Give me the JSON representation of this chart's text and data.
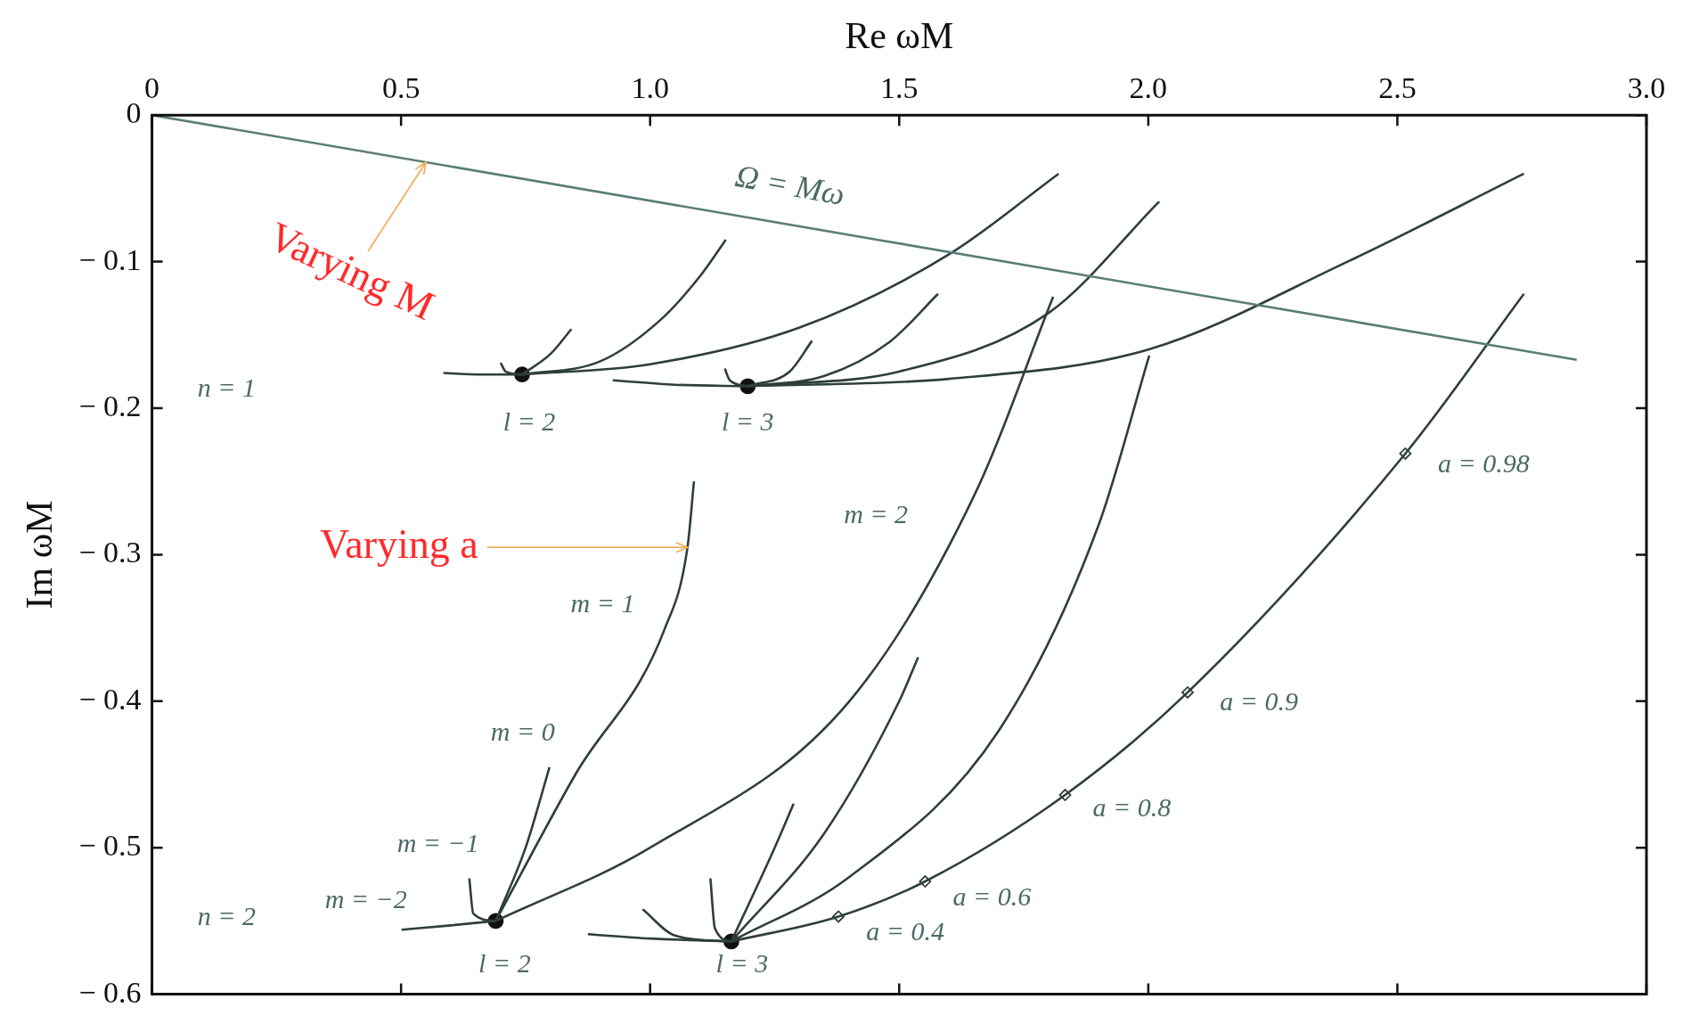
{
  "chart_data": {
    "type": "line",
    "xlabel": "Re ωM",
    "ylabel": "Im ωM",
    "xlim": [
      0,
      3.0
    ],
    "ylim": [
      -0.6,
      0
    ],
    "xticks": [
      0,
      0.5,
      {
        "value": 1.0,
        "label": "1.0"
      },
      1.5,
      {
        "value": 2.0,
        "label": "2.0"
      },
      2.5,
      {
        "value": 3.0,
        "label": "3.0"
      }
    ],
    "yticks": [
      {
        "value": 0,
        "label": "0"
      },
      {
        "value": -0.1,
        "label": "− 0.1"
      },
      {
        "value": -0.2,
        "label": "− 0.2"
      },
      {
        "value": -0.3,
        "label": "− 0.3"
      },
      {
        "value": -0.4,
        "label": "− 0.4"
      },
      {
        "value": -0.5,
        "label": "− 0.5"
      },
      {
        "value": -0.6,
        "label": "− 0.6"
      }
    ],
    "grid": false,
    "legend": false,
    "marker": "none",
    "line_style": "solid",
    "series": [
      {
        "type": "line",
        "color": "#5a7d77",
        "x": [
          0,
          2.86
        ],
        "values": [
          0,
          -0.167
        ]
      },
      {
        "type": "line",
        "color": "#2e3f3b",
        "x": [
          0.585,
          0.66,
          0.743
        ],
        "values": [
          -0.176,
          -0.177,
          -0.177
        ]
      },
      {
        "type": "line",
        "color": "#2e3f3b",
        "x": [
          0.7,
          0.71,
          0.743
        ],
        "values": [
          -0.169,
          -0.175,
          -0.177
        ]
      },
      {
        "type": "line",
        "color": "#2e3f3b",
        "x": [
          0.743,
          0.8,
          0.842
        ],
        "values": [
          -0.177,
          -0.163,
          -0.146
        ]
      },
      {
        "type": "line",
        "color": "#2e3f3b",
        "x": [
          0.743,
          0.9,
          1.02,
          1.1,
          1.152
        ],
        "values": [
          -0.177,
          -0.168,
          -0.14,
          -0.11,
          -0.085
        ]
      },
      {
        "type": "line",
        "color": "#2e3f3b",
        "x": [
          0.743,
          1.0,
          1.3,
          1.6,
          1.82
        ],
        "values": [
          -0.177,
          -0.17,
          -0.145,
          -0.095,
          -0.04
        ]
      },
      {
        "type": "line",
        "color": "#2e3f3b",
        "x": [
          0.925,
          1.05,
          1.196
        ],
        "values": [
          -0.181,
          -0.184,
          -0.185
        ]
      },
      {
        "type": "line",
        "color": "#2e3f3b",
        "x": [
          1.15,
          1.16,
          1.196
        ],
        "values": [
          -0.173,
          -0.181,
          -0.185
        ]
      },
      {
        "type": "line",
        "color": "#2e3f3b",
        "x": [
          1.196,
          1.28,
          1.325
        ],
        "values": [
          -0.185,
          -0.175,
          -0.154
        ]
      },
      {
        "type": "line",
        "color": "#2e3f3b",
        "x": [
          1.196,
          1.35,
          1.48,
          1.578
        ],
        "values": [
          -0.185,
          -0.178,
          -0.155,
          -0.122
        ]
      },
      {
        "type": "line",
        "color": "#2e3f3b",
        "x": [
          1.196,
          1.5,
          1.8,
          2.022
        ],
        "values": [
          -0.185,
          -0.175,
          -0.135,
          -0.059
        ]
      },
      {
        "type": "line",
        "color": "#2e3f3b",
        "x": [
          1.196,
          1.6,
          2.0,
          2.4,
          2.754
        ],
        "values": [
          -0.185,
          -0.18,
          -0.16,
          -0.1,
          -0.04
        ]
      },
      {
        "type": "line",
        "color": "#2e3f3b",
        "x": [
          0.501,
          0.6,
          0.69
        ],
        "values": [
          -0.556,
          -0.553,
          -0.55
        ]
      },
      {
        "type": "line",
        "color": "#2e3f3b",
        "x": [
          0.637,
          0.645,
          0.69
        ],
        "values": [
          -0.521,
          -0.545,
          -0.55
        ]
      },
      {
        "type": "line",
        "color": "#2e3f3b",
        "x": [
          0.69,
          0.75,
          0.798
        ],
        "values": [
          -0.55,
          -0.5,
          -0.445
        ]
      },
      {
        "type": "line",
        "color": "#2e3f3b",
        "x": [
          0.69,
          0.85,
          1.03,
          1.075,
          1.088
        ],
        "values": [
          -0.55,
          -0.45,
          -0.35,
          -0.295,
          -0.25
        ]
      },
      {
        "type": "line",
        "color": "#2e3f3b",
        "x": [
          0.69,
          1.0,
          1.4,
          1.65,
          1.809
        ],
        "values": [
          -0.55,
          -0.5,
          -0.4,
          -0.26,
          -0.124
        ]
      },
      {
        "type": "line",
        "color": "#2e3f3b",
        "x": [
          0.875,
          1.0,
          1.163
        ],
        "values": [
          -0.559,
          -0.562,
          -0.564
        ]
      },
      {
        "type": "line",
        "color": "#2e3f3b",
        "x": [
          0.985,
          1.05,
          1.163
        ],
        "values": [
          -0.542,
          -0.56,
          -0.564
        ]
      },
      {
        "type": "line",
        "color": "#2e3f3b",
        "x": [
          1.121,
          1.13,
          1.163
        ],
        "values": [
          -0.521,
          -0.555,
          -0.564
        ]
      },
      {
        "type": "line",
        "color": "#2e3f3b",
        "x": [
          1.163,
          1.25,
          1.288
        ],
        "values": [
          -0.564,
          -0.5,
          -0.47
        ]
      },
      {
        "type": "line",
        "color": "#2e3f3b",
        "x": [
          1.163,
          1.35,
          1.5,
          1.538
        ],
        "values": [
          -0.564,
          -0.49,
          -0.4,
          -0.37
        ]
      },
      {
        "type": "line",
        "color": "#2e3f3b",
        "x": [
          1.163,
          1.4,
          1.7,
          1.9,
          2.002
        ],
        "values": [
          -0.564,
          -0.52,
          -0.42,
          -0.28,
          -0.164
        ]
      },
      {
        "type": "line",
        "color": "#2e3f3b",
        "x": [
          1.163,
          1.378,
          1.552,
          1.833,
          2.079,
          2.516,
          2.754
        ],
        "values": [
          -0.564,
          -0.547,
          -0.523,
          -0.464,
          -0.394,
          -0.231,
          -0.122
        ]
      },
      {
        "type": "scatter",
        "color": "#111111",
        "marker": "circle",
        "x": [
          0.743,
          1.196,
          0.69,
          1.163
        ],
        "values": [
          -0.177,
          -0.185,
          -0.55,
          -0.564
        ]
      },
      {
        "type": "scatter",
        "color": "#2e3f3b",
        "marker": "diamond",
        "x": [
          1.378,
          1.552,
          1.833,
          2.079,
          2.516
        ],
        "values": [
          -0.547,
          -0.523,
          -0.464,
          -0.394,
          -0.231
        ]
      }
    ],
    "annotations": [
      {
        "text": "Varying M",
        "x": 0.55,
        "y": -0.0321
      },
      {
        "text": "Varying a",
        "x": 1.075,
        "y": -0.295
      },
      {
        "text": "Ω = Mω",
        "x": 1.28,
        "y": -0.0747
      },
      "n = 1",
      "n = 2",
      {
        "text": "l = 2",
        "x": 0.743,
        "y": -0.177
      },
      {
        "text": "l = 3",
        "x": 1.196,
        "y": -0.185
      },
      {
        "text": "l = 2",
        "x": 0.69,
        "y": -0.55
      },
      {
        "text": "l = 3",
        "x": 1.163,
        "y": -0.564
      },
      {
        "text": "m = 2",
        "x": 1.65,
        "y": -0.26
      },
      {
        "text": "m = 1",
        "x": 1.03,
        "y": -0.35
      },
      {
        "text": "m = 0",
        "x": 0.798,
        "y": -0.445
      },
      {
        "text": "m = −1",
        "x": 0.637,
        "y": -0.521
      },
      {
        "text": "m = −2",
        "x": 0.501,
        "y": -0.556
      },
      {
        "text": "a = 0.4",
        "x": 1.378,
        "y": -0.547
      },
      {
        "text": "a = 0.6",
        "x": 1.552,
        "y": -0.523
      },
      {
        "text": "a = 0.8",
        "x": 1.833,
        "y": -0.464
      },
      {
        "text": "a = 0.9",
        "x": 2.079,
        "y": -0.394
      },
      {
        "text": "a = 0.98",
        "x": 2.516,
        "y": -0.231
      }
    ]
  }
}
